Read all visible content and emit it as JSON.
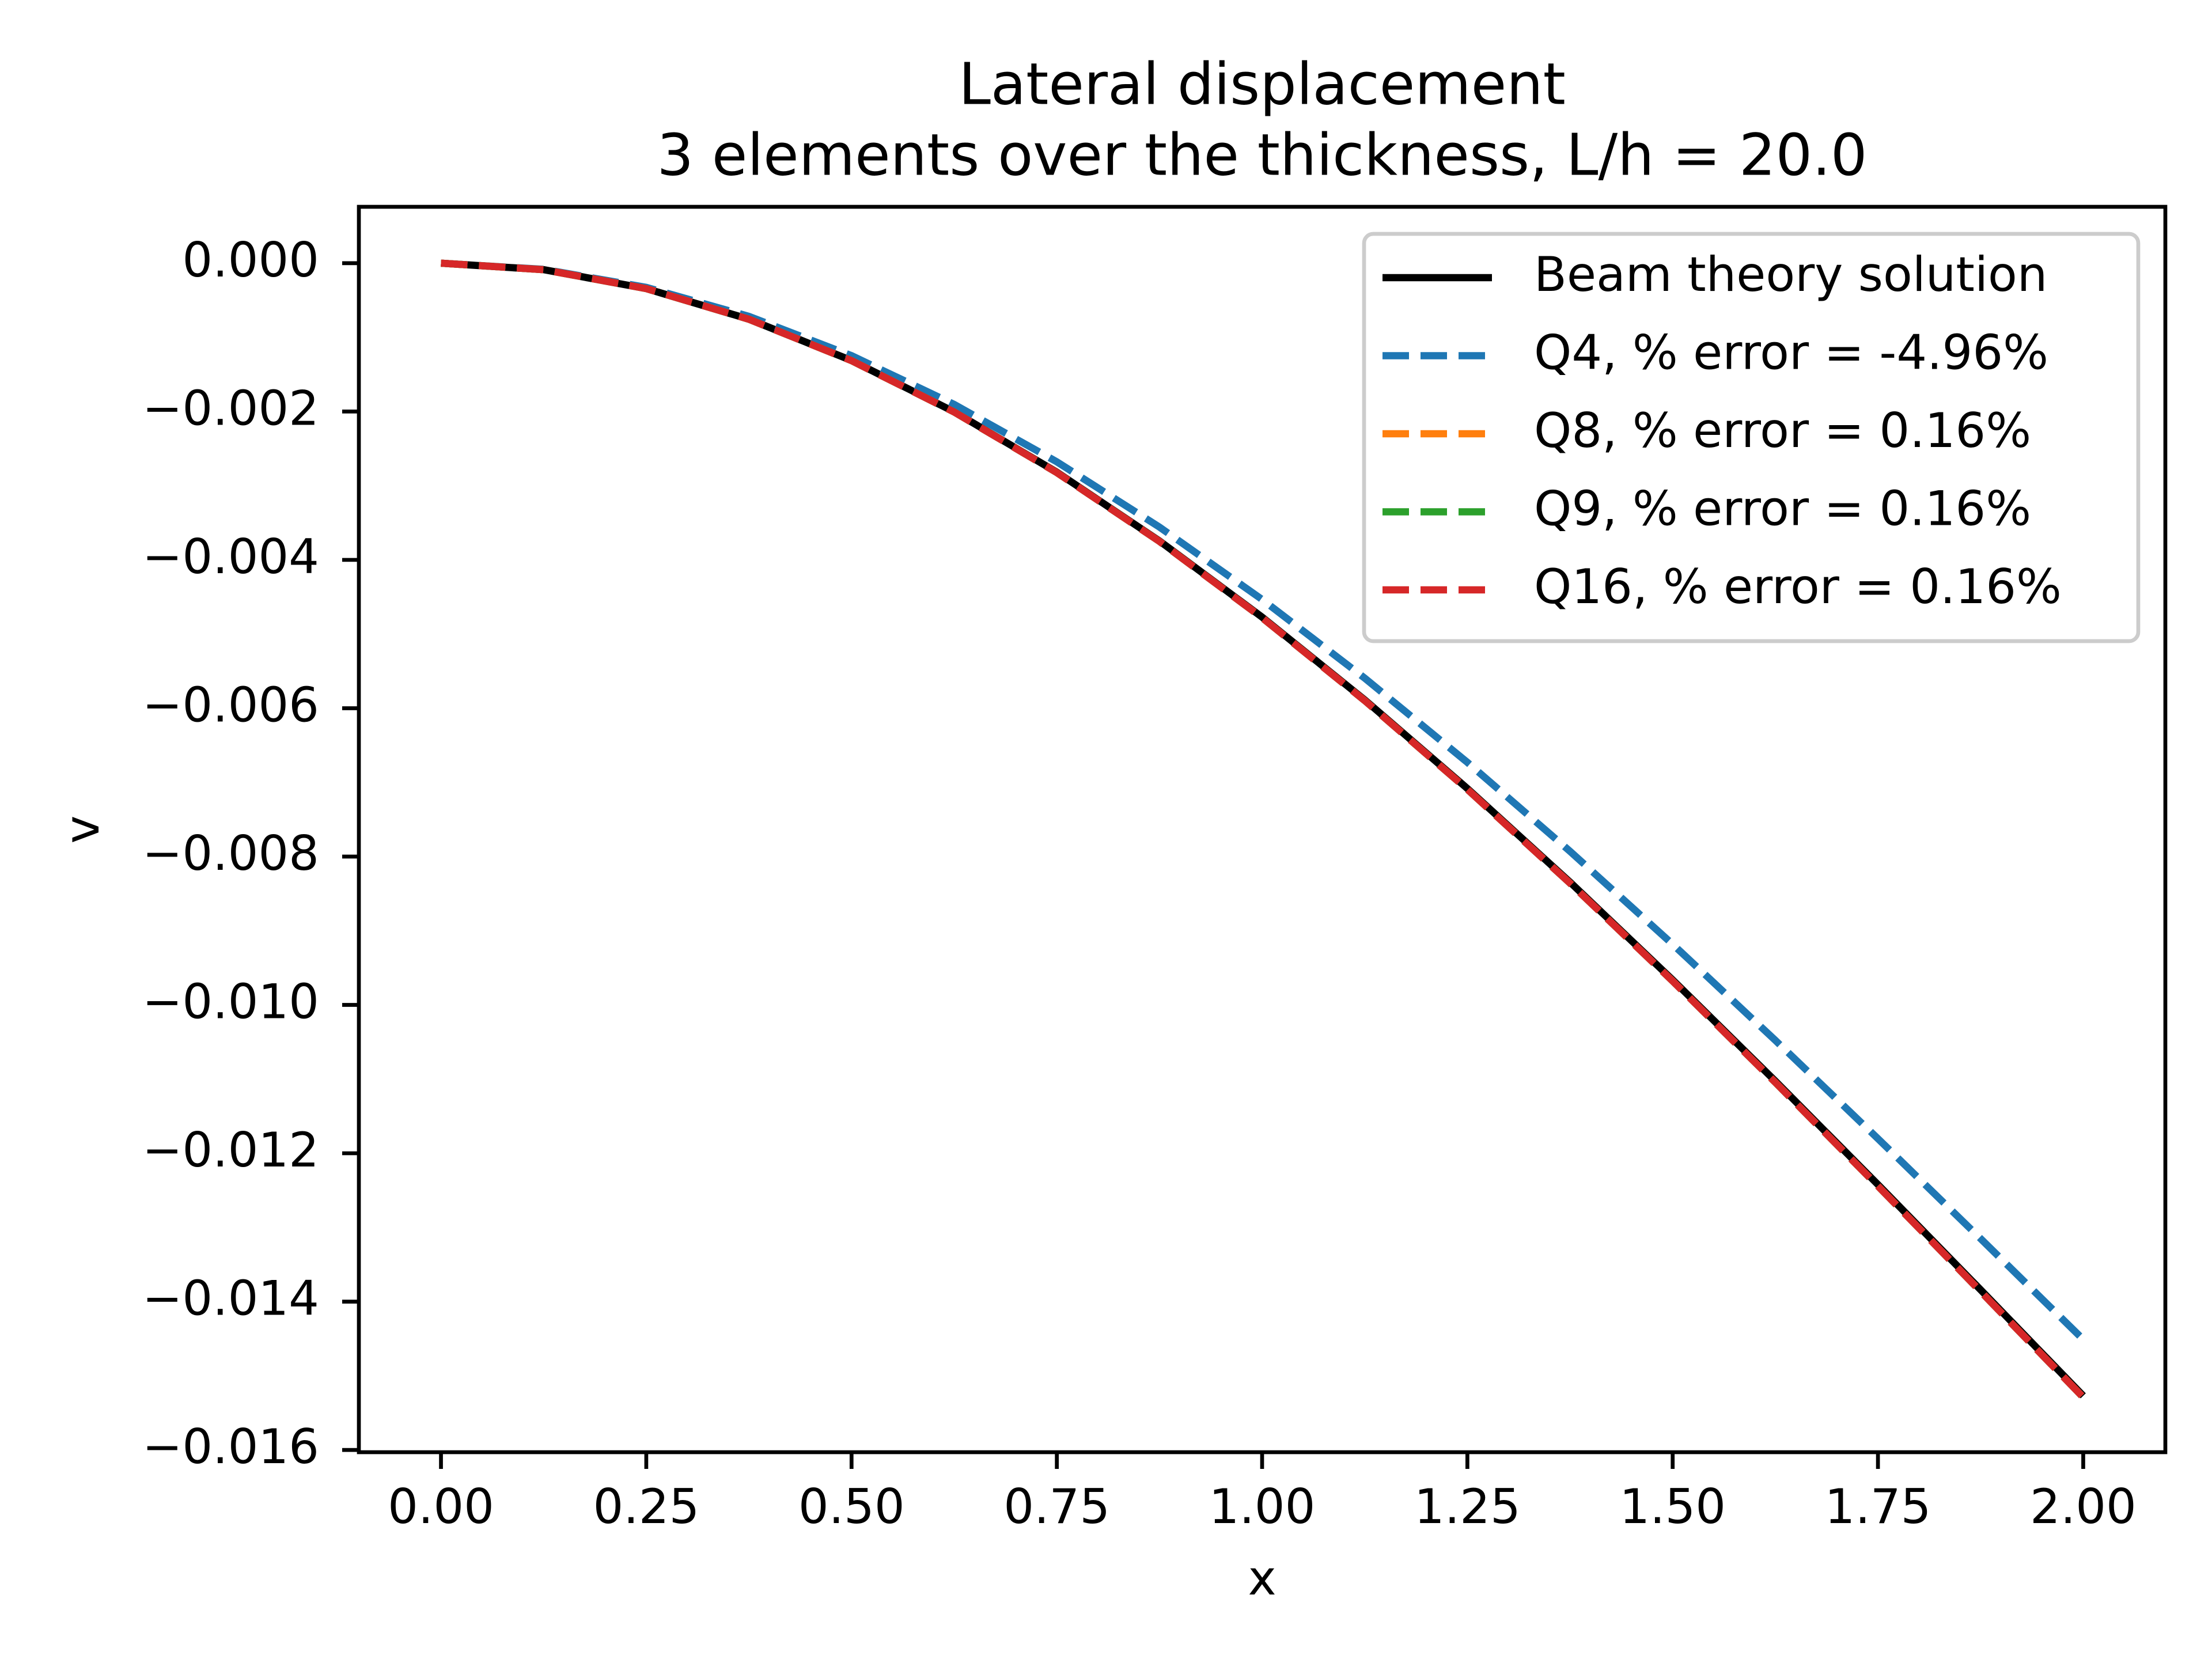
{
  "chart_data": {
    "type": "line",
    "title": "Lateral displacement",
    "subtitle": "3 elements over the thickness, L/h = 20.0",
    "x_label": "x",
    "y_label": "v",
    "x": [
      0,
      0.125,
      0.25,
      0.375,
      0.5,
      0.625,
      0.75,
      0.875,
      1,
      1.125,
      1.25,
      1.375,
      1.5,
      1.625,
      1.75,
      1.875,
      2
    ],
    "series": [
      {
        "name": "Beam theory solution",
        "color": "#000000",
        "dashed": false,
        "values": [
          0,
          -8.76e-05,
          -0.000343,
          -0.000755,
          -0.001312,
          -0.002004,
          -0.002818,
          -0.003745,
          -0.004772,
          -0.005888,
          -0.007083,
          -0.008345,
          -0.009663,
          -0.011026,
          -0.012422,
          -0.01384,
          -0.01527
        ]
      },
      {
        "name": "Q4, % error = -4.96%",
        "color": "#1f77b4",
        "dashed": true,
        "values": [
          0,
          -8.32e-05,
          -0.000326,
          -0.000717,
          -0.001247,
          -0.001904,
          -0.002678,
          -0.003558,
          -0.004534,
          -0.005595,
          -0.00673,
          -0.007929,
          -0.009182,
          -0.010477,
          -0.011803,
          -0.013151,
          -0.01451
        ]
      },
      {
        "name": "Q8, % error = 0.16%",
        "color": "#ff7f0e",
        "dashed": true,
        "values": [
          0,
          -8.77e-05,
          -0.000343,
          -0.000756,
          -0.001314,
          -0.002007,
          -0.002823,
          -0.003751,
          -0.00478,
          -0.005897,
          -0.007094,
          -0.008358,
          -0.009678,
          -0.011044,
          -0.012442,
          -0.013862,
          -0.01529
        ]
      },
      {
        "name": "Q9, % error = 0.16%",
        "color": "#2ca02c",
        "dashed": true,
        "values": [
          0,
          -8.77e-05,
          -0.000343,
          -0.000756,
          -0.001314,
          -0.002007,
          -0.002823,
          -0.003751,
          -0.00478,
          -0.005897,
          -0.007094,
          -0.008358,
          -0.009678,
          -0.011044,
          -0.012442,
          -0.013862,
          -0.01529
        ]
      },
      {
        "name": "Q16, % error = 0.16%",
        "color": "#d62728",
        "dashed": true,
        "values": [
          0,
          -8.77e-05,
          -0.000343,
          -0.000756,
          -0.001314,
          -0.002007,
          -0.002823,
          -0.003751,
          -0.00478,
          -0.005897,
          -0.007094,
          -0.008358,
          -0.009678,
          -0.011044,
          -0.012442,
          -0.013862,
          -0.01529
        ]
      }
    ],
    "xlim": [
      -0.1,
      2.1
    ],
    "ylim": [
      -0.01603,
      0.00076
    ],
    "xticks": [
      {
        "value": 0,
        "label": "0.00"
      },
      {
        "value": 0.25,
        "label": "0.25"
      },
      {
        "value": 0.5,
        "label": "0.50"
      },
      {
        "value": 0.75,
        "label": "0.75"
      },
      {
        "value": 1,
        "label": "1.00"
      },
      {
        "value": 1.25,
        "label": "1.25"
      },
      {
        "value": 1.5,
        "label": "1.50"
      },
      {
        "value": 1.75,
        "label": "1.75"
      },
      {
        "value": 2,
        "label": "2.00"
      }
    ],
    "yticks": [
      {
        "value": 0,
        "label": "0.000"
      },
      {
        "value": -0.002,
        "label": "−0.002"
      },
      {
        "value": -0.004,
        "label": "−0.004"
      },
      {
        "value": -0.006,
        "label": "−0.006"
      },
      {
        "value": -0.008,
        "label": "−0.008"
      },
      {
        "value": -0.01,
        "label": "−0.010"
      },
      {
        "value": -0.012,
        "label": "−0.012"
      },
      {
        "value": -0.014,
        "label": "−0.014"
      },
      {
        "value": -0.016,
        "label": "−0.016"
      }
    ],
    "legend": "upper right",
    "grid": false
  }
}
